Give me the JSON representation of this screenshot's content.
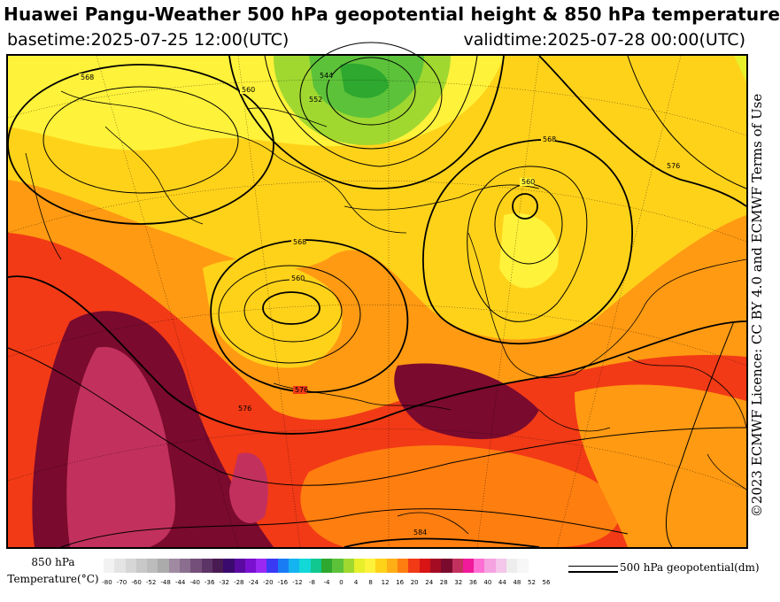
{
  "header": {
    "title": "Huawei Pangu-Weather 500 hPa geopotential height & 850 hPa temperature",
    "basetime": "basetime:2025-07-25 12:00(UTC)",
    "validtime": "validtime:2025-07-28 00:00(UTC)"
  },
  "licence": "©2023 ECMWF Licence: CC BY 4.0 and ECMWF Terms of Use",
  "legend": {
    "temperature_label_line1": "850 hPa",
    "temperature_label_line2": "Temperature(°C)",
    "contour_label": "500 hPa geopotential(dm)",
    "colorbar": [
      {
        "value": "-80",
        "color": "#f2f2f2"
      },
      {
        "value": "-76",
        "color": "#e4e4e4"
      },
      {
        "value": "-72",
        "color": "#d6d6d6"
      },
      {
        "value": "-68",
        "color": "#c8c8c8"
      },
      {
        "value": "-64",
        "color": "#bcbcbc"
      },
      {
        "value": "-60",
        "color": "#ababab"
      },
      {
        "value": "-56",
        "color": "#a08aa2"
      },
      {
        "value": "-52",
        "color": "#8a6f8e"
      },
      {
        "value": "-48",
        "color": "#744f79"
      },
      {
        "value": "-44",
        "color": "#5d3466"
      },
      {
        "value": "-40",
        "color": "#4a1a52"
      },
      {
        "value": "-36",
        "color": "#3a0a6e"
      },
      {
        "value": "-32",
        "color": "#5a0aa0"
      },
      {
        "value": "-28",
        "color": "#7a10d0"
      },
      {
        "value": "-24",
        "color": "#9a28f2"
      },
      {
        "value": "-20",
        "color": "#3a3af5"
      },
      {
        "value": "-16",
        "color": "#1a7cf5"
      },
      {
        "value": "-12",
        "color": "#14b4f0"
      },
      {
        "value": "-8",
        "color": "#12d8d8"
      },
      {
        "value": "-4",
        "color": "#10c890"
      },
      {
        "value": "0",
        "color": "#2ea82e"
      },
      {
        "value": "4",
        "color": "#5cc23a"
      },
      {
        "value": "8",
        "color": "#a0d830"
      },
      {
        "value": "12",
        "color": "#e6ef2a"
      },
      {
        "value": "16",
        "color": "#fff23a"
      },
      {
        "value": "20",
        "color": "#ffd21a"
      },
      {
        "value": "24",
        "color": "#ffae16"
      },
      {
        "value": "28",
        "color": "#ff7e10"
      },
      {
        "value": "32",
        "color": "#f23a16"
      },
      {
        "value": "36",
        "color": "#d81414"
      },
      {
        "value": "40",
        "color": "#a40c24"
      },
      {
        "value": "44",
        "color": "#7a0a2e"
      },
      {
        "value": "48",
        "color": "#c2305e"
      },
      {
        "value": "52",
        "color": "#f01a9a"
      },
      {
        "value": "56",
        "color": "#ff6ed2"
      },
      {
        "value": "58",
        "color": "#f5a3e0"
      },
      {
        "value": "60",
        "color": "#f4c6ea"
      },
      {
        "value": "62",
        "color": "#ededed"
      },
      {
        "value": "64",
        "color": "#f7f7f7"
      }
    ],
    "tick_labels": [
      "-80",
      "-70",
      "-60",
      "-52",
      "-48",
      "-44",
      "-40",
      "-36",
      "-32",
      "-28",
      "-24",
      "-20",
      "-16",
      "-12",
      "-8",
      "-4",
      "0",
      "4",
      "8",
      "12",
      "16",
      "20",
      "24",
      "28",
      "32",
      "36",
      "40",
      "44",
      "48",
      "52",
      "56"
    ]
  },
  "contour_labels": [
    {
      "text": "560"
    },
    {
      "text": "560"
    },
    {
      "text": "560"
    },
    {
      "text": "568"
    },
    {
      "text": "568"
    },
    {
      "text": "568"
    },
    {
      "text": "576"
    },
    {
      "text": "584"
    },
    {
      "text": "576"
    },
    {
      "text": "544"
    },
    {
      "text": "552"
    },
    {
      "text": "576"
    }
  ]
}
